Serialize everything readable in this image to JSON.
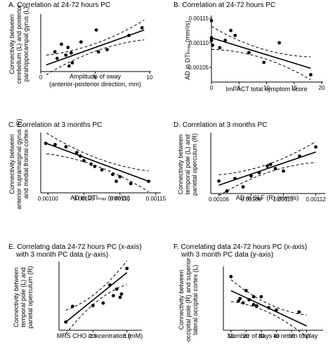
{
  "figure": {
    "panels": [
      {
        "id": "A",
        "letter": "A.",
        "title": [
          "Correlation at 24-72 hours PC"
        ],
        "ylabel": [
          "Connectivity between",
          "cerebellum (L) and posterior",
          "parahippocampal gyrus (L)"
        ],
        "xlabel": [
          "Amplitude of sway",
          "(anterior-posterior direction, mm)"
        ]
      },
      {
        "id": "B",
        "letter": "B.",
        "title": [
          "Correlation at 24-72 hours PC"
        ],
        "ylabel": [
          "AD in DTIₘₐₓ (mm²/s)"
        ],
        "xlabel": [
          "ImPACT total symptom score"
        ]
      },
      {
        "id": "C",
        "letter": "C.",
        "title": [
          "Correlation at 3 months PC"
        ],
        "ylabel": [
          "Connectivity between",
          "anterior supramarginal gyrus (R)",
          "and medial frontal cortex"
        ],
        "xlabel": [
          "AD in DTIₘₐₓ (mm²/s)"
        ]
      },
      {
        "id": "D",
        "letter": "D.",
        "title": [
          "Correlation at 3 months PC"
        ],
        "ylabel": [
          "Connectivity between",
          "temporal pole (L) and",
          "parietal operculum (R)"
        ],
        "xlabel": [
          "AD in SLF (R) (mm²/s)"
        ]
      },
      {
        "id": "E",
        "letter": "E.",
        "title": [
          "Correlatng data 24-72 hours PC (x-axis)",
          "with 3 month PC data (y-axis)"
        ],
        "ylabel": [
          "Connectivity between",
          "temporal pole (L) and",
          "parietal operculum (R)"
        ],
        "xlabel": [
          "MRS CHO concentration (mM)"
        ]
      },
      {
        "id": "F",
        "letter": "F.",
        "title": [
          "Correlating data 24-72 hours PC (x-axis)",
          "with 3 month PC data (y-axis)"
        ],
        "ylabel": [
          "Connectivity between",
          "occipital pole (R) and superior",
          "lateral occipital cortex (L)"
        ],
        "xlabel": [
          "Number of days to return to play"
        ]
      }
    ]
  },
  "chart_data": [
    {
      "panel": "A",
      "type": "scatter",
      "xlim": [
        0,
        10
      ],
      "ylim": [
        0,
        0.5
      ],
      "xticks": [
        "0",
        "5",
        "10"
      ],
      "yticks": [],
      "fit": [
        [
          0.5,
          0.06
        ],
        [
          9.5,
          0.38
        ]
      ],
      "points": [
        [
          1.3,
          0.18
        ],
        [
          1.5,
          0.12
        ],
        [
          1.9,
          0.25
        ],
        [
          2.3,
          0.15
        ],
        [
          2.5,
          0.22
        ],
        [
          2.6,
          0.05
        ],
        [
          2.8,
          0.17
        ],
        [
          2.9,
          0.08
        ],
        [
          3.7,
          0.27
        ],
        [
          5.1,
          0.38
        ],
        [
          5.3,
          0.18
        ],
        [
          6.1,
          0.2
        ],
        [
          8.1,
          0.33
        ],
        [
          9.3,
          0.4
        ]
      ]
    },
    {
      "panel": "B",
      "type": "scatter",
      "xlim": [
        0,
        20
      ],
      "ylim": [
        0.00102,
        0.00115
      ],
      "xticks": [
        "0",
        "5",
        "10",
        "15",
        "20"
      ],
      "yticks": [
        "0.00105",
        "0.00110",
        "0.00115"
      ],
      "fit": [
        [
          0,
          0.00111
        ],
        [
          18,
          0.001048
        ]
      ],
      "points": [
        [
          0,
          0.001145
        ],
        [
          0,
          0.00111
        ],
        [
          0,
          0.001105
        ],
        [
          0.2,
          0.001095
        ],
        [
          1.5,
          0.00109
        ],
        [
          2.5,
          0.001105
        ],
        [
          3.5,
          0.001125
        ],
        [
          4.3,
          0.001115
        ],
        [
          6.8,
          0.00108
        ],
        [
          9.5,
          0.00106
        ],
        [
          12.3,
          0.0011
        ],
        [
          18,
          0.001035
        ]
      ]
    },
    {
      "panel": "C",
      "type": "scatter",
      "xlim": [
        0.00099,
        0.001155
      ],
      "ylim": [
        -0.4,
        0.1
      ],
      "xticks": [
        "0.00100",
        "0.00105",
        "0.00110",
        "0.00115"
      ],
      "yticks": [],
      "fit": [
        [
          0.000998,
          0.03
        ],
        [
          0.00114,
          -0.3
        ]
      ],
      "points": [
        [
          0.000997,
          0.03
        ],
        [
          0.00101,
          0.02
        ],
        [
          0.001025,
          0.0
        ],
        [
          0.00104,
          -0.05
        ],
        [
          0.001045,
          -0.08
        ],
        [
          0.00105,
          -0.12
        ],
        [
          0.00106,
          -0.15
        ],
        [
          0.001065,
          -0.17
        ],
        [
          0.001075,
          -0.2
        ],
        [
          0.00109,
          -0.24
        ],
        [
          0.001095,
          -0.3
        ],
        [
          0.0011,
          -0.26
        ],
        [
          0.001115,
          -0.32
        ],
        [
          0.00114,
          -0.3
        ]
      ]
    },
    {
      "panel": "D",
      "type": "scatter",
      "xlim": [
        0.001055,
        0.001125
      ],
      "ylim": [
        0.0,
        0.7
      ],
      "xticks": [
        "0.00106",
        "0.00108",
        "0.00110",
        "0.00112"
      ],
      "yticks": [],
      "fit": [
        [
          0.00106,
          0.1
        ],
        [
          0.00112,
          0.5
        ]
      ],
      "points": [
        [
          0.00106,
          0.15
        ],
        [
          0.001065,
          0.03
        ],
        [
          0.00107,
          0.18
        ],
        [
          0.001075,
          0.08
        ],
        [
          0.00108,
          0.21
        ],
        [
          0.001085,
          0.25
        ],
        [
          0.00109,
          0.33
        ],
        [
          0.001092,
          0.35
        ],
        [
          0.001095,
          0.3
        ],
        [
          0.0011,
          0.27
        ],
        [
          0.00111,
          0.45
        ],
        [
          0.00112,
          0.56
        ]
      ]
    },
    {
      "panel": "E",
      "type": "scatter",
      "xlim": [
        2.0,
        3.2
      ],
      "ylim": [
        -0.2,
        0.6
      ],
      "xticks": [
        "2.5",
        "3.0"
      ],
      "yticks": [],
      "fit": [
        [
          2.1,
          -0.1
        ],
        [
          3.0,
          0.5
        ]
      ],
      "points": [
        [
          2.1,
          -0.1
        ],
        [
          2.2,
          0.09
        ],
        [
          2.5,
          0.1
        ],
        [
          2.65,
          0.13
        ],
        [
          2.75,
          0.35
        ],
        [
          2.8,
          0.22
        ],
        [
          2.85,
          0.3
        ],
        [
          2.9,
          0.2
        ],
        [
          2.92,
          0.24
        ],
        [
          3.0,
          0.55
        ]
      ]
    },
    {
      "panel": "F",
      "type": "scatter",
      "xlim": [
        5,
        70
      ],
      "ylim": [
        -0.1,
        0.9
      ],
      "xticks": [
        "10",
        "20",
        "30",
        "40",
        "50",
        "60"
      ],
      "yticks": [],
      "fit": [
        [
          10,
          0.55
        ],
        [
          60,
          -0.03
        ]
      ],
      "points": [
        [
          10,
          0.78
        ],
        [
          15,
          0.38
        ],
        [
          16,
          0.42
        ],
        [
          18,
          0.35
        ],
        [
          20,
          0.55
        ],
        [
          22,
          0.4
        ],
        [
          25,
          0.45
        ],
        [
          25,
          0.32
        ],
        [
          27,
          0.3
        ],
        [
          30,
          0.45
        ],
        [
          35,
          0.27
        ],
        [
          40,
          0.23
        ],
        [
          55,
          0.2
        ]
      ]
    }
  ]
}
